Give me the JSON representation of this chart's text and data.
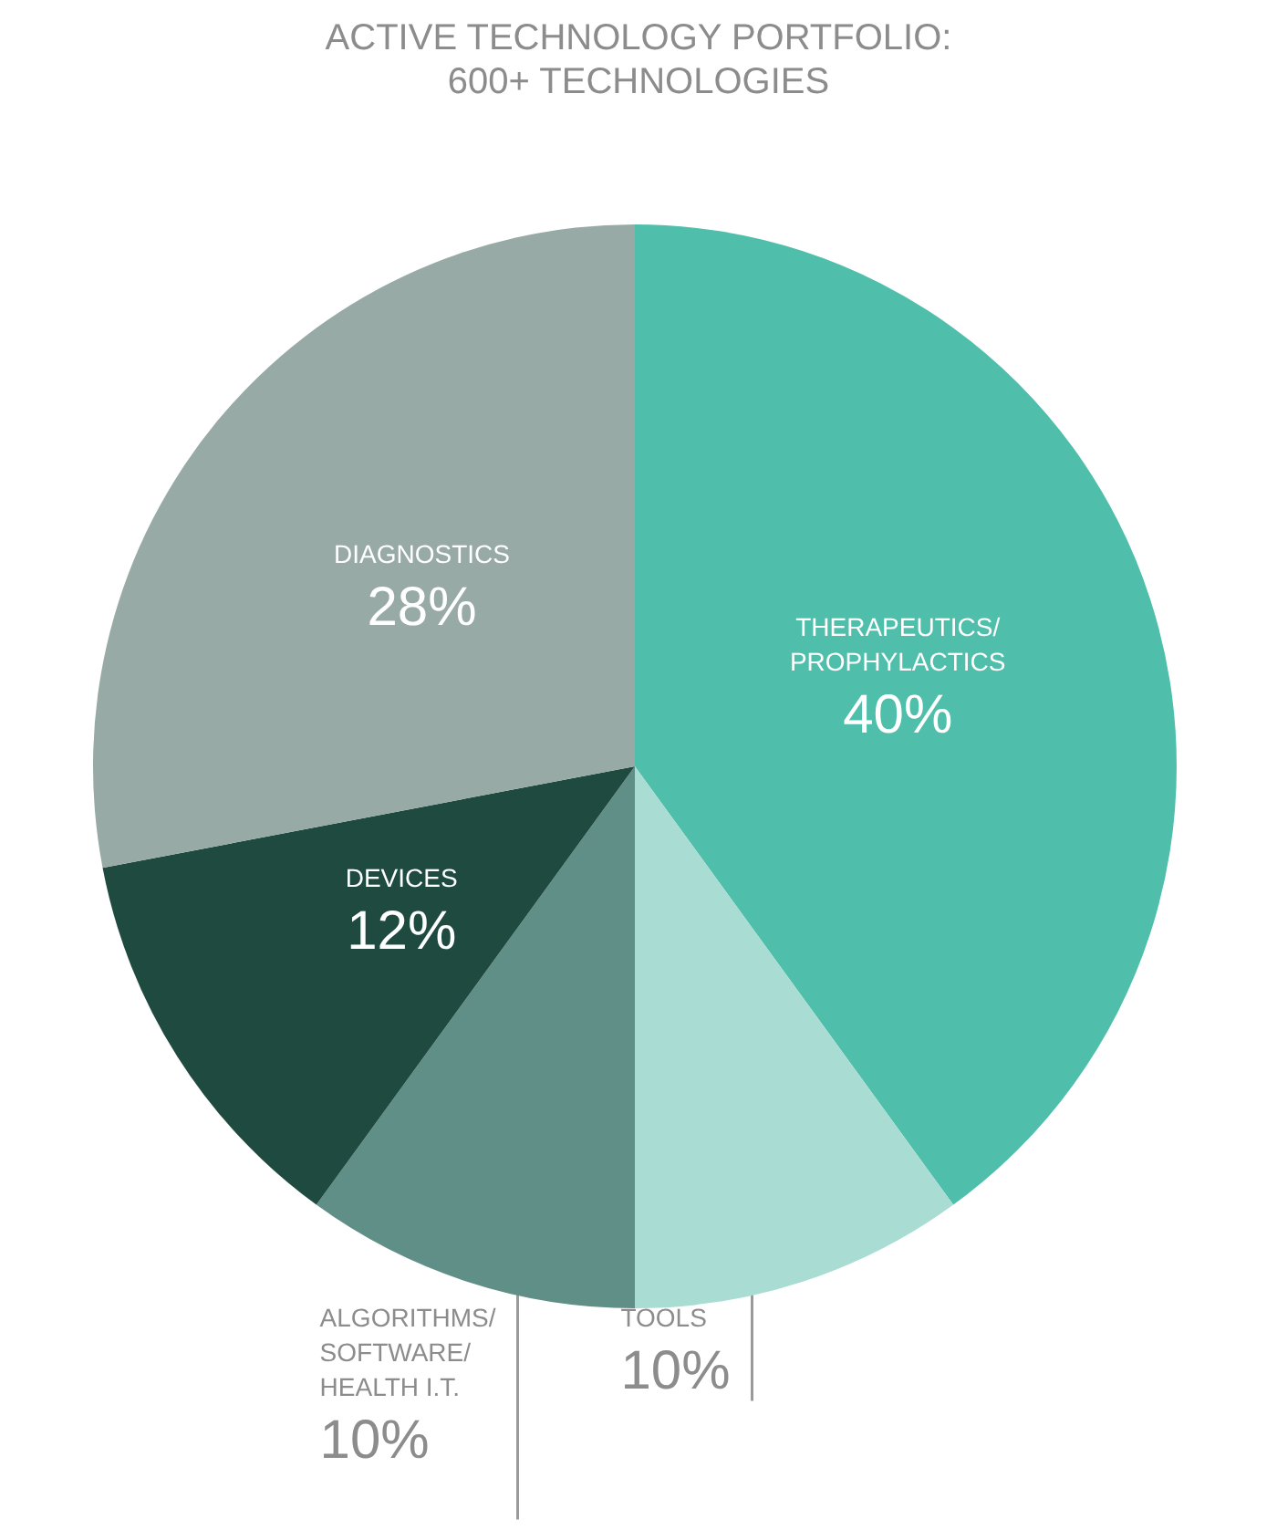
{
  "chart_data": {
    "type": "pie",
    "title": "ACTIVE TECHNOLOGY PORTFOLIO:",
    "subtitle": "600+ TECHNOLOGIES",
    "categories": [
      "THERAPEUTICS/PROPHYLACTICS",
      "TOOLS",
      "ALGORITHMS/SOFTWARE/HEALTH I.T.",
      "DEVICES",
      "DIAGNOSTICS"
    ],
    "values": [
      40,
      10,
      10,
      12,
      28
    ],
    "value_labels": [
      "40%",
      "10%",
      "10%",
      "12%",
      "28%"
    ],
    "colors": [
      "#4fbfab",
      "#a9ddd4",
      "#5f8f86",
      "#1f4a40",
      "#98aaa5"
    ]
  }
}
